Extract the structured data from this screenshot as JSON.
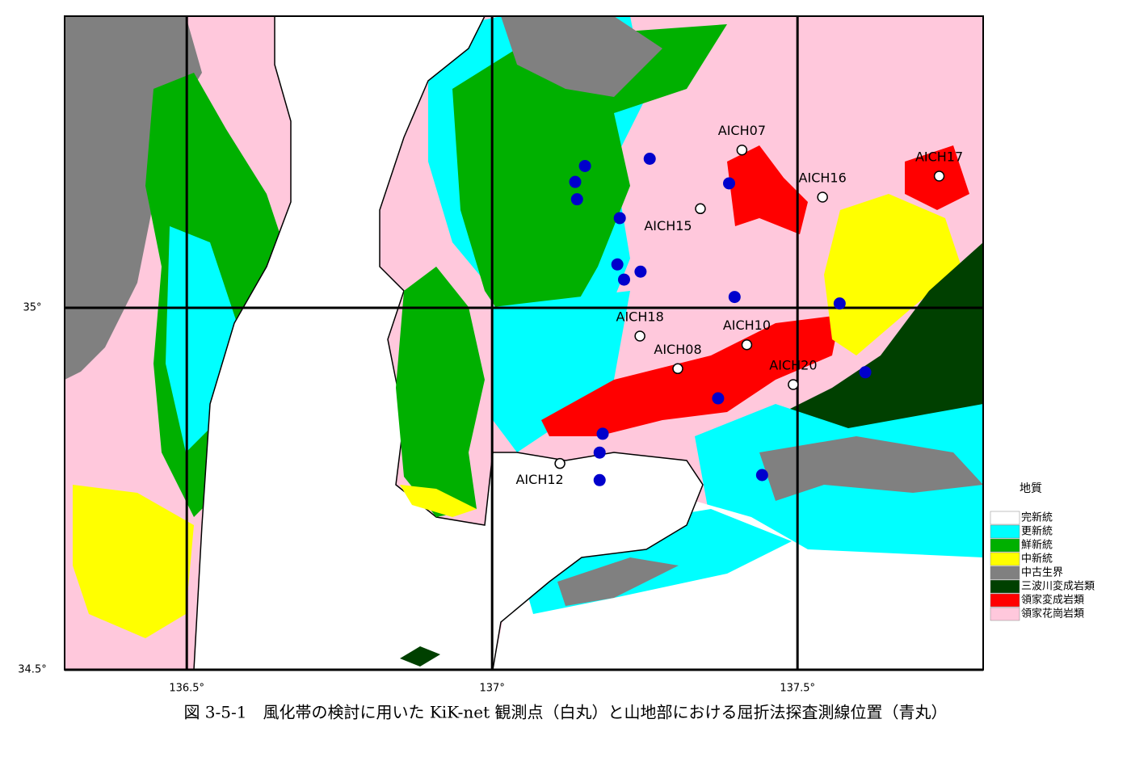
{
  "map": {
    "xlim": [
      136.3,
      137.804
    ],
    "ylim": [
      34.5,
      35.403
    ],
    "xticks": [
      {
        "value": 136.5,
        "label": "136.5°"
      },
      {
        "value": 137,
        "label": "137°"
      },
      {
        "value": 137.5,
        "label": "137.5°"
      }
    ],
    "yticks": [
      {
        "value": 35,
        "label": "35°"
      },
      {
        "value": 34.5,
        "label": "34.5°"
      }
    ],
    "grid": true,
    "station_color": "#ffffff",
    "stations": [
      {
        "name": "AICH07",
        "lon": 137.409,
        "lat": 35.218
      },
      {
        "name": "AICH16",
        "lon": 137.541,
        "lat": 35.153
      },
      {
        "name": "AICH17",
        "lon": 137.732,
        "lat": 35.182
      },
      {
        "name": "AICH15",
        "lon": 137.341,
        "lat": 35.137
      },
      {
        "name": "AICH18",
        "lon": 137.242,
        "lat": 34.961
      },
      {
        "name": "AICH10",
        "lon": 137.417,
        "lat": 34.949
      },
      {
        "name": "AICH08",
        "lon": 137.304,
        "lat": 34.916
      },
      {
        "name": "AICH20",
        "lon": 137.493,
        "lat": 34.894
      },
      {
        "name": "AICH12",
        "lon": 137.111,
        "lat": 34.785
      }
    ],
    "survey_color": "#0000cc",
    "survey_points": [
      {
        "lon": 137.258,
        "lat": 35.206
      },
      {
        "lon": 137.152,
        "lat": 35.196
      },
      {
        "lon": 137.136,
        "lat": 35.174
      },
      {
        "lon": 137.388,
        "lat": 35.172
      },
      {
        "lon": 137.139,
        "lat": 35.15
      },
      {
        "lon": 137.209,
        "lat": 35.124
      },
      {
        "lon": 137.205,
        "lat": 35.06
      },
      {
        "lon": 137.243,
        "lat": 35.05
      },
      {
        "lon": 137.216,
        "lat": 35.039
      },
      {
        "lon": 137.397,
        "lat": 35.015
      },
      {
        "lon": 137.569,
        "lat": 35.006
      },
      {
        "lon": 137.611,
        "lat": 34.911
      },
      {
        "lon": 137.37,
        "lat": 34.875
      },
      {
        "lon": 137.181,
        "lat": 34.826
      },
      {
        "lon": 137.176,
        "lat": 34.8
      },
      {
        "lon": 137.176,
        "lat": 34.762
      },
      {
        "lon": 137.442,
        "lat": 34.769
      }
    ]
  },
  "legend": {
    "title": "地質",
    "items": [
      {
        "name": "完新統",
        "color": "#ffffff"
      },
      {
        "name": "更新統",
        "color": "#00ffff"
      },
      {
        "name": "鮮新統",
        "color": "#00b000"
      },
      {
        "name": "中新統",
        "color": "#ffff00"
      },
      {
        "name": "中古生界",
        "color": "#808080"
      },
      {
        "name": "三波川変成岩類",
        "color": "#004000"
      },
      {
        "name": "領家変成岩類",
        "color": "#ff0000"
      },
      {
        "name": "領家花崗岩類",
        "color": "#ffc8dc"
      }
    ]
  },
  "caption": "図 3-5-1　風化帯の検討に用いた KiK-net 観測点（白丸）と山地部における屈折法探査測線位置（青丸）"
}
